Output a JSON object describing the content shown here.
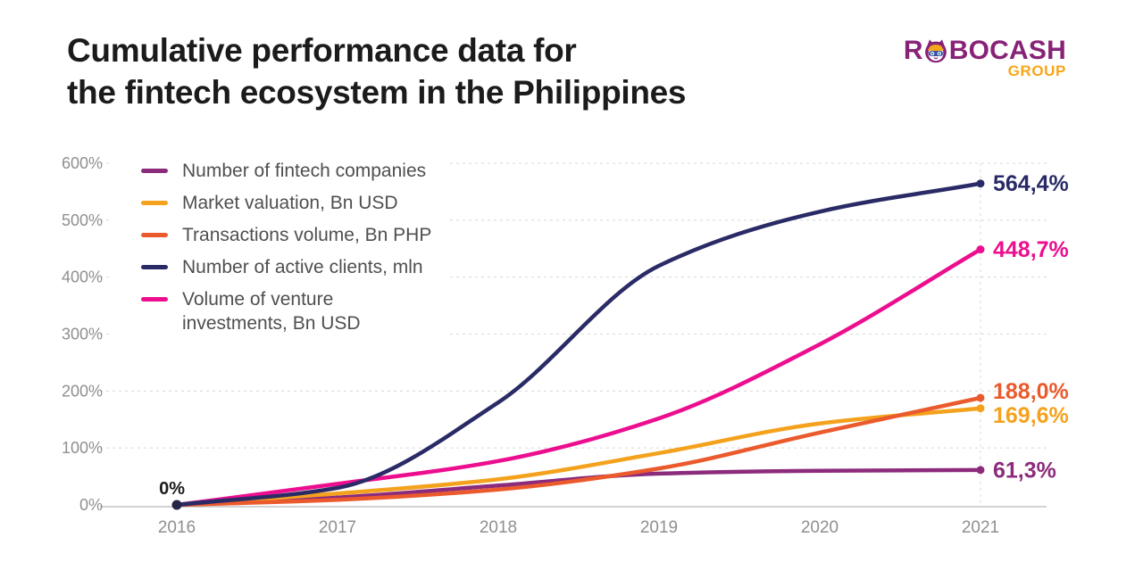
{
  "header": {
    "title": "Cumulative performance data for\nthe fintech ecosystem in the Philippines"
  },
  "logo": {
    "brand_prefix": "R",
    "brand_suffix": "BOCASH",
    "group_label": "GROUP",
    "brand_color": "#872277",
    "group_color": "#F9A51A",
    "icon": "robot-cat-head-icon"
  },
  "chart_data": {
    "type": "line",
    "title": "Cumulative performance data for the fintech ecosystem in the Philippines",
    "x": [
      2016,
      2017,
      2018,
      2019,
      2020,
      2021
    ],
    "x_tick_labels": [
      "2016",
      "2017",
      "2018",
      "2019",
      "2020",
      "2021"
    ],
    "y_tick_labels": [
      "0%",
      "100%",
      "200%",
      "300%",
      "400%",
      "500%",
      "600%"
    ],
    "ylim": [
      0,
      600
    ],
    "y_unit": "%",
    "grid": "horizontal-dashed, vertical-dashed-at-2021",
    "legend_position": "top-left-inside",
    "start_label": "0%",
    "series": [
      {
        "name": "Number of fintech companies",
        "color": "#8C2B7C",
        "values": [
          0,
          13,
          34,
          55,
          60,
          61.3
        ],
        "end_label": "61,3%"
      },
      {
        "name": "Market valuation, Bn USD",
        "color": "#F4A21D",
        "values": [
          0,
          20,
          45,
          91,
          143,
          169.6
        ],
        "end_label": "169,6%"
      },
      {
        "name": "Transactions volume, Bn PHP",
        "color": "#EB5A2D",
        "values": [
          0,
          9,
          27,
          64,
          127,
          188.0
        ],
        "end_label": "188,0%"
      },
      {
        "name": "Number of active clients, mln",
        "color": "#2A2B66",
        "values": [
          0,
          30,
          180,
          420,
          515,
          564.4
        ],
        "end_label": "564,4%"
      },
      {
        "name": "Volume of venture\ninvestments, Bn USD",
        "color": "#EC0E8F",
        "values": [
          0,
          37,
          77,
          152,
          282,
          448.7
        ],
        "end_label": "448,7%"
      }
    ],
    "axis_text_color": "#8F8F8F",
    "gridline_color": "#D8D8D8",
    "baseline_color": "#C4C4C4"
  }
}
